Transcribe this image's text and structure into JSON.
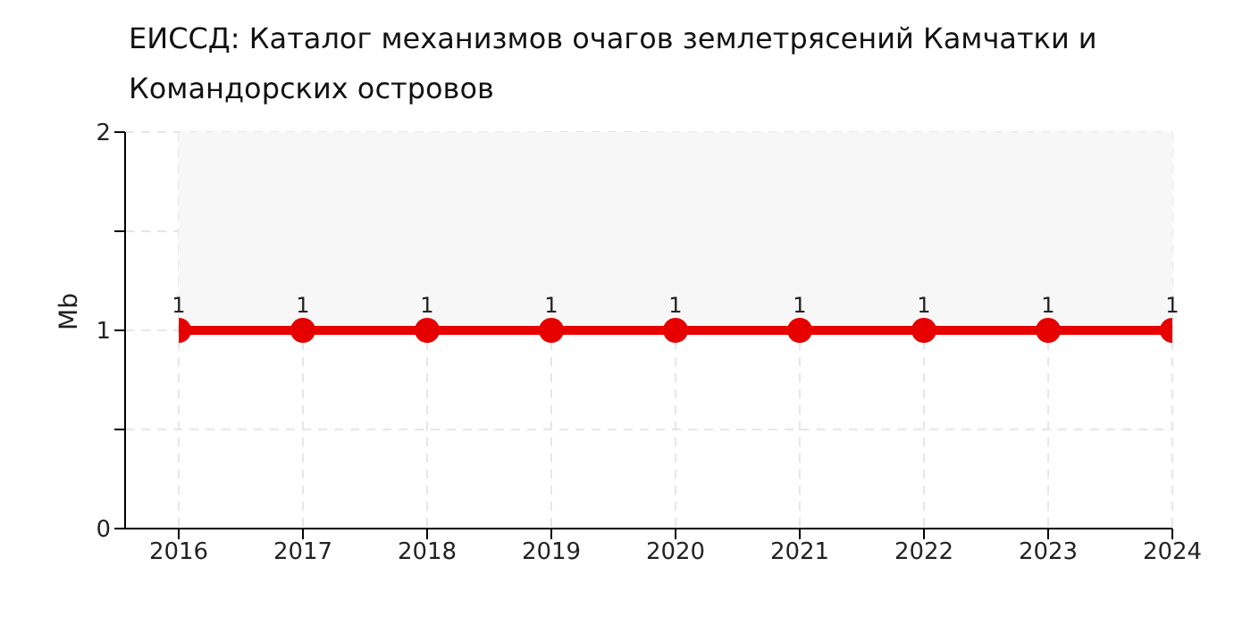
{
  "chart_data": {
    "type": "line",
    "title": "ЕИССД: Каталог механизмов очагов землетрясений Камчатки и Командорских островов",
    "ylabel": "Mb",
    "categories": [
      "2016",
      "2017",
      "2018",
      "2019",
      "2020",
      "2021",
      "2022",
      "2023",
      "2024"
    ],
    "series": [
      {
        "color": "#e60000",
        "values": [
          1,
          1,
          1,
          1,
          1,
          1,
          1,
          1,
          1
        ]
      }
    ],
    "ylim": [
      0,
      2
    ],
    "yticks": [
      0,
      {
        "value": 0.5,
        "label": null
      },
      1,
      {
        "value": 1.5,
        "label": null
      },
      2
    ],
    "bands": [
      {
        "axis": "y",
        "from": 1,
        "to": 2,
        "color": "#f7f7f7"
      }
    ],
    "grid": true,
    "marker": "circle",
    "line_style": "solid",
    "data_labels": true,
    "legend": false
  }
}
